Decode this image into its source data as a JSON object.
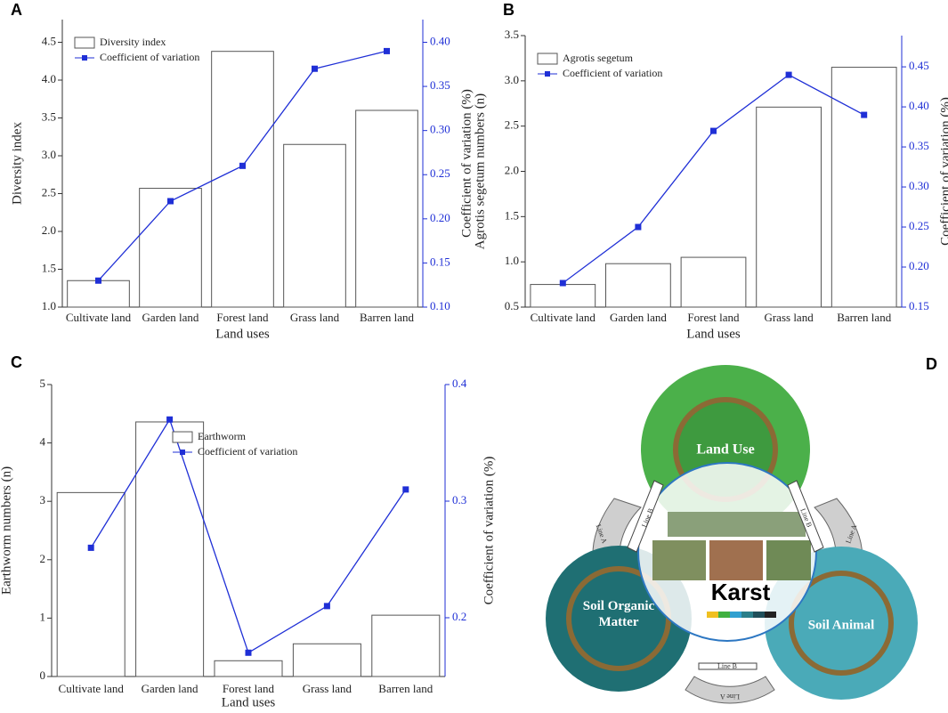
{
  "chart_data": [
    {
      "type": "bar-line",
      "panel_label": "A",
      "xlabel": "Land uses",
      "ylabel": "Diversity index",
      "y2label": "Coefficient of variation (%)",
      "categories": [
        "Cultivate land",
        "Garden land",
        "Forest land",
        "Grass land",
        "Barren land"
      ],
      "series": [
        {
          "name": "Diversity index",
          "color": "#555555",
          "values": [
            1.35,
            2.57,
            4.38,
            3.15,
            3.6
          ]
        },
        {
          "name": "Coefficient of variation",
          "color": "#1f2fd6",
          "axis": "y2",
          "values": [
            0.13,
            0.22,
            0.26,
            0.37,
            0.39
          ]
        }
      ],
      "ylim": [
        1,
        4.8
      ],
      "yticks": [
        {
          "value": 1,
          "label": "1.0"
        },
        1.5,
        {
          "value": 2,
          "label": "2.0"
        },
        2.5,
        {
          "value": 3,
          "label": "3.0"
        },
        3.5,
        {
          "value": 4,
          "label": "4.0"
        },
        4.5
      ],
      "y2lim": [
        0.1,
        0.4257
      ],
      "y2ticks": [
        {
          "value": 0.1,
          "label": "0.10"
        },
        0.15,
        {
          "value": 0.2,
          "label": "0.20"
        },
        0.25,
        {
          "value": 0.3,
          "label": "0.30"
        },
        0.35,
        {
          "value": 0.4,
          "label": "0.40"
        }
      ],
      "legend": "upper left"
    },
    {
      "type": "bar-line",
      "panel_label": "B",
      "xlabel": "Land uses",
      "ylabel": "Agrotis segetum numbers (n)",
      "y2label": "Coefficient of variation (%)",
      "categories": [
        "Cultivate land",
        "Garden land",
        "Forest land",
        "Grass land",
        "Barren land"
      ],
      "series": [
        {
          "name": "Agrotis segetum",
          "color": "#555555",
          "values": [
            0.75,
            0.98,
            1.05,
            2.71,
            3.15
          ]
        },
        {
          "name": "Coefficient of variation",
          "color": "#1f2fd6",
          "axis": "y2",
          "values": [
            0.18,
            0.25,
            0.37,
            0.44,
            0.39
          ]
        }
      ],
      "ylim": [
        0.5,
        3.5
      ],
      "yticks": [
        0.5,
        {
          "value": 1,
          "label": "1.0"
        },
        1.5,
        {
          "value": 2,
          "label": "2.0"
        },
        2.5,
        {
          "value": 3,
          "label": "3.0"
        },
        3.5
      ],
      "y2lim": [
        0.15,
        0.489
      ],
      "y2ticks": [
        0.15,
        {
          "value": 0.2,
          "label": "0.20"
        },
        0.25,
        {
          "value": 0.3,
          "label": "0.30"
        },
        0.35,
        {
          "value": 0.4,
          "label": "0.40"
        },
        0.45
      ],
      "legend": "upper left"
    },
    {
      "type": "bar-line",
      "panel_label": "C",
      "xlabel": "Land uses",
      "ylabel": "Earthworm numbers (n)",
      "y2label": "Coefficient of variation (%)",
      "categories": [
        "Cultivate land",
        "Garden land",
        "Forest land",
        "Grass land",
        "Barren land"
      ],
      "series": [
        {
          "name": "Earthworm",
          "color": "#555555",
          "values": [
            3.15,
            4.36,
            0.27,
            0.56,
            1.05
          ]
        },
        {
          "name": "Coefficient of variation",
          "color": "#1f2fd6",
          "axis": "y2",
          "values": [
            0.26,
            0.37,
            0.17,
            0.21,
            0.31
          ]
        }
      ],
      "ylim": [
        0,
        5
      ],
      "yticks": [
        0,
        1,
        2,
        3,
        4,
        5
      ],
      "y2lim": [
        0.1496,
        0.4
      ],
      "y2ticks": [
        0.2,
        0.3,
        0.4
      ],
      "legend": "center"
    }
  ],
  "diagram": {
    "panel_label": "D",
    "center": "Karst",
    "nodes": [
      {
        "label": "Land Use"
      },
      {
        "label": "Soil Organic Matter"
      },
      {
        "label": "Soil Animal"
      }
    ],
    "arrows": [
      "Line A",
      "Line B",
      "Line A",
      "Line B",
      "Line B",
      "Line A"
    ]
  }
}
